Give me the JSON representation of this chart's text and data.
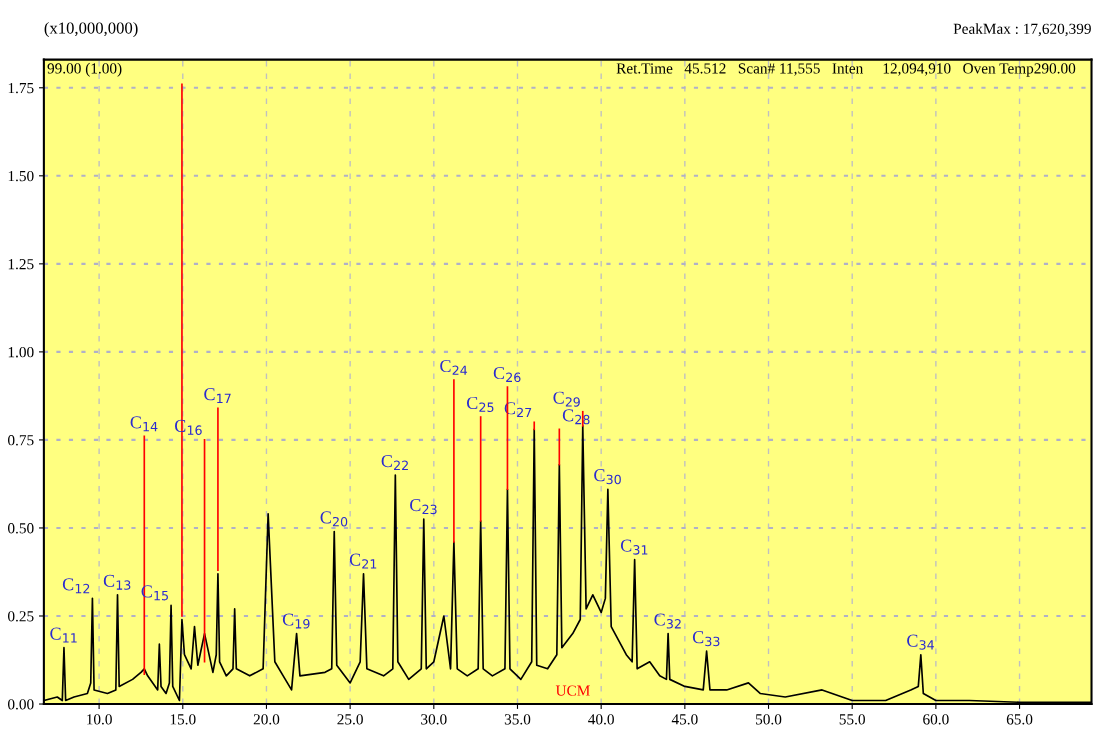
{
  "chart_data": {
    "type": "line",
    "ylabel": "(x10,000,000)",
    "xlim": [
      6.7,
      69.3
    ],
    "ylim": [
      0,
      1.83
    ],
    "xticks": [
      {
        "value": 10,
        "label": "10.0"
      },
      {
        "value": 15,
        "label": "15.0"
      },
      {
        "value": 20,
        "label": "20.0"
      },
      {
        "value": 25,
        "label": "25.0"
      },
      {
        "value": 30,
        "label": "30.0"
      },
      {
        "value": 35,
        "label": "35.0"
      },
      {
        "value": 40,
        "label": "40.0"
      },
      {
        "value": 45,
        "label": "45.0"
      },
      {
        "value": 50,
        "label": "50.0"
      },
      {
        "value": 55,
        "label": "55.0"
      },
      {
        "value": 60,
        "label": "60.0"
      },
      {
        "value": 65,
        "label": "65.0"
      }
    ],
    "yticks": [
      {
        "value": 0,
        "label": "0.00"
      },
      {
        "value": 0.25,
        "label": "0.25"
      },
      {
        "value": 0.5,
        "label": "0.50"
      },
      {
        "value": 0.75,
        "label": "0.75"
      },
      {
        "value": 1.0,
        "label": "1.00"
      },
      {
        "value": 1.25,
        "label": "1.25"
      },
      {
        "value": 1.5,
        "label": "1.50"
      },
      {
        "value": 1.75,
        "label": "1.75"
      }
    ],
    "grid": true,
    "line_style": "solid",
    "marker": "none",
    "series": [
      {
        "color": "#000000",
        "x": [
          6.7,
          7.5,
          7.8,
          7.9,
          8.0,
          8.5,
          9.3,
          9.5,
          9.6,
          9.7,
          10.5,
          11.0,
          11.1,
          11.2,
          12.0,
          12.5,
          12.7,
          12.9,
          13.5,
          13.6,
          13.7,
          14.0,
          14.2,
          14.3,
          14.4,
          14.8,
          14.95,
          15.1,
          15.5,
          15.7,
          15.9,
          16.3,
          16.8,
          17.0,
          17.1,
          17.2,
          17.6,
          18.0,
          18.1,
          18.2,
          19.0,
          19.8,
          20.1,
          20.5,
          21.0,
          21.5,
          21.8,
          22.0,
          23.5,
          23.9,
          24.05,
          24.2,
          25.0,
          25.6,
          25.8,
          26.0,
          27.0,
          27.55,
          27.7,
          27.85,
          28.5,
          29.25,
          29.4,
          29.55,
          30.0,
          30.6,
          31.0,
          31.2,
          31.4,
          32.0,
          32.65,
          32.8,
          32.95,
          33.5,
          34.25,
          34.4,
          34.55,
          35.2,
          35.85,
          36.0,
          36.15,
          36.8,
          37.35,
          37.5,
          37.65,
          38.3,
          38.75,
          38.9,
          39.1,
          39.5,
          40.0,
          40.25,
          40.4,
          40.6,
          41.5,
          41.85,
          42.0,
          42.15,
          42.9,
          43.5,
          43.9,
          44.0,
          44.1,
          45.0,
          46.1,
          46.3,
          46.5,
          47.5,
          48.8,
          49.5,
          51.0,
          53.2,
          55.0,
          57.0,
          58.5,
          58.95,
          59.1,
          59.25,
          60.0,
          62.0,
          65.0,
          69.3
        ],
        "values": [
          0.01,
          0.02,
          0.01,
          0.16,
          0.01,
          0.02,
          0.03,
          0.06,
          0.3,
          0.04,
          0.03,
          0.04,
          0.31,
          0.05,
          0.07,
          0.09,
          0.1,
          0.08,
          0.04,
          0.17,
          0.05,
          0.03,
          0.06,
          0.28,
          0.05,
          0.01,
          0.24,
          0.14,
          0.1,
          0.22,
          0.11,
          0.2,
          0.09,
          0.14,
          0.37,
          0.12,
          0.08,
          0.1,
          0.27,
          0.1,
          0.08,
          0.1,
          0.54,
          0.12,
          0.08,
          0.04,
          0.2,
          0.08,
          0.09,
          0.1,
          0.49,
          0.11,
          0.06,
          0.12,
          0.37,
          0.1,
          0.08,
          0.1,
          0.65,
          0.12,
          0.07,
          0.1,
          0.525,
          0.1,
          0.12,
          0.25,
          0.1,
          0.46,
          0.1,
          0.08,
          0.1,
          0.52,
          0.1,
          0.08,
          0.1,
          0.61,
          0.1,
          0.07,
          0.12,
          0.78,
          0.11,
          0.1,
          0.14,
          0.68,
          0.16,
          0.2,
          0.24,
          0.79,
          0.27,
          0.31,
          0.26,
          0.3,
          0.61,
          0.22,
          0.14,
          0.12,
          0.41,
          0.1,
          0.12,
          0.08,
          0.07,
          0.2,
          0.07,
          0.05,
          0.04,
          0.15,
          0.04,
          0.04,
          0.06,
          0.03,
          0.02,
          0.04,
          0.01,
          0.01,
          0.04,
          0.05,
          0.14,
          0.03,
          0.01,
          0.01,
          0.005,
          0.005
        ]
      },
      {
        "color": "#ff0000",
        "x": [
          12.7,
          12.7
        ],
        "values": [
          0.085,
          0.76
        ]
      },
      {
        "color": "#ff0000",
        "x": [
          14.95,
          14.95
        ],
        "values": [
          0.25,
          1.76
        ]
      },
      {
        "color": "#ff0000",
        "x": [
          16.3,
          16.3
        ],
        "values": [
          0.12,
          0.75
        ]
      },
      {
        "color": "#ff0000",
        "x": [
          17.1,
          17.1
        ],
        "values": [
          0.38,
          0.84
        ]
      },
      {
        "color": "#ff0000",
        "x": [
          31.2,
          31.2
        ],
        "values": [
          0.46,
          0.92
        ]
      },
      {
        "color": "#ff0000",
        "x": [
          32.8,
          32.8
        ],
        "values": [
          0.52,
          0.815
        ]
      },
      {
        "color": "#ff0000",
        "x": [
          34.4,
          34.4
        ],
        "values": [
          0.61,
          0.9
        ]
      },
      {
        "color": "#ff0000",
        "x": [
          36.0,
          36.0
        ],
        "values": [
          0.78,
          0.8
        ]
      },
      {
        "color": "#ff0000",
        "x": [
          37.5,
          37.5
        ],
        "values": [
          0.68,
          0.78
        ]
      },
      {
        "color": "#ff0000",
        "x": [
          38.9,
          38.9
        ],
        "values": [
          0.79,
          0.83
        ]
      }
    ],
    "annotations": [
      "PeakMax : 17,620,399",
      "99.00 (1.00)",
      "Ret.Time   45.512   Scan# 11,555   Inten     12,094,910   Oven Temp290.00",
      {
        "text": "C11",
        "x": 7.9,
        "y": 0.16
      },
      {
        "text": "C12",
        "x": 9.6,
        "y": 0.3
      },
      {
        "text": "C13",
        "x": 11.1,
        "y": 0.31
      },
      {
        "text": "C14",
        "x": 12.7,
        "y": 0.76
      },
      {
        "text": "C15",
        "x": 14.3,
        "y": 0.28
      },
      {
        "text": "C16",
        "x": 16.3,
        "y": 0.75
      },
      {
        "text": "C17",
        "x": 17.1,
        "y": 0.84
      },
      {
        "text": "C19",
        "x": 21.8,
        "y": 0.2
      },
      {
        "text": "C20",
        "x": 24.05,
        "y": 0.49
      },
      {
        "text": "C21",
        "x": 25.8,
        "y": 0.37
      },
      {
        "text": "C22",
        "x": 27.7,
        "y": 0.65
      },
      {
        "text": "C23",
        "x": 29.4,
        "y": 0.525
      },
      {
        "text": "C24",
        "x": 31.2,
        "y": 0.92
      },
      {
        "text": "C25",
        "x": 32.8,
        "y": 0.815
      },
      {
        "text": "C26",
        "x": 34.4,
        "y": 0.9
      },
      {
        "text": "C27",
        "x": 36.0,
        "y": 0.8
      },
      {
        "text": "C28",
        "x": 37.5,
        "y": 0.78
      },
      {
        "text": "C29",
        "x": 38.9,
        "y": 0.83
      },
      {
        "text": "C30",
        "x": 40.4,
        "y": 0.61
      },
      {
        "text": "C31",
        "x": 42.0,
        "y": 0.41
      },
      {
        "text": "C32",
        "x": 44.0,
        "y": 0.2
      },
      {
        "text": "C33",
        "x": 46.3,
        "y": 0.15
      },
      {
        "text": "C34",
        "x": 59.1,
        "y": 0.14
      },
      "UCM"
    ]
  }
}
